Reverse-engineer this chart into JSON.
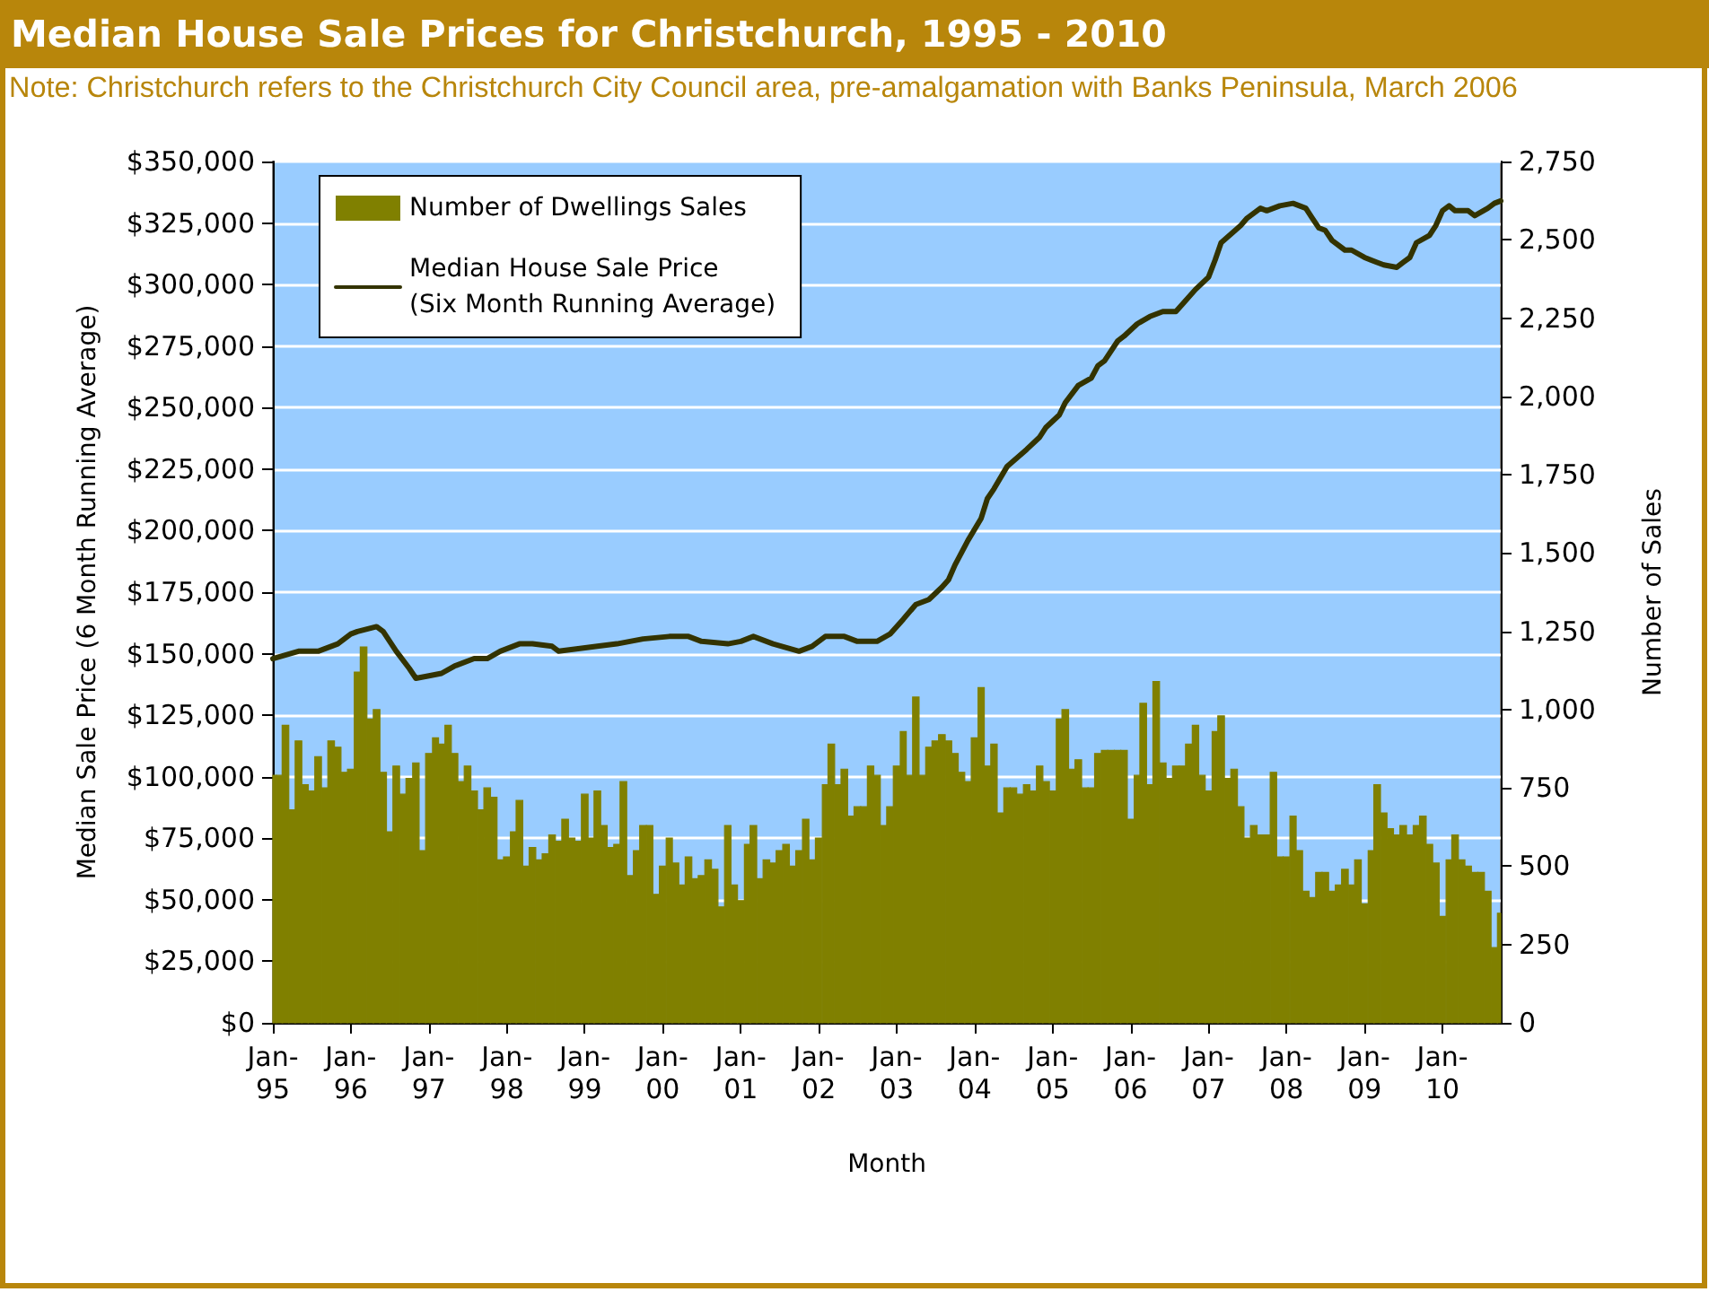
{
  "chart_data": {
    "type": "bar",
    "title": "Median House Sale Prices for Christchurch, 1995 - 2010",
    "annotations": [
      "Note: Christchurch refers to the Christchurch City Council area, pre-amalgamation with Banks Peninsula, March 2006"
    ],
    "xlabel": "Month",
    "ylabel": "Median Sale Price (6 Month Running Average)",
    "y2label": "Number of Sales",
    "x": [
      "1995-01",
      "1995-02",
      "1995-03",
      "1995-04",
      "1995-05",
      "1995-06",
      "1995-07",
      "1995-08",
      "1995-09",
      "1995-10",
      "1995-11",
      "1995-12",
      "1996-01",
      "1996-02",
      "1996-03",
      "1996-04",
      "1996-05",
      "1996-06",
      "1996-07",
      "1996-08",
      "1996-09",
      "1996-10",
      "1996-11",
      "1996-12",
      "1997-01",
      "1997-02",
      "1997-03",
      "1997-04",
      "1997-05",
      "1997-06",
      "1997-07",
      "1997-08",
      "1997-09",
      "1997-10",
      "1997-11",
      "1997-12",
      "1998-01",
      "1998-02",
      "1998-03",
      "1998-04",
      "1998-05",
      "1998-06",
      "1998-07",
      "1998-08",
      "1998-09",
      "1998-10",
      "1998-11",
      "1998-12",
      "1999-01",
      "1999-02",
      "1999-03",
      "1999-04",
      "1999-05",
      "1999-06",
      "1999-07",
      "1999-08",
      "1999-09",
      "1999-10",
      "1999-11",
      "1999-12",
      "2000-01",
      "2000-02",
      "2000-03",
      "2000-04",
      "2000-05",
      "2000-06",
      "2000-07",
      "2000-08",
      "2000-09",
      "2000-10",
      "2000-11",
      "2000-12",
      "2001-01",
      "2001-02",
      "2001-03",
      "2001-04",
      "2001-05",
      "2001-06",
      "2001-07",
      "2001-08",
      "2001-09",
      "2001-10",
      "2001-11",
      "2001-12",
      "2002-01",
      "2002-02",
      "2002-03",
      "2002-04",
      "2002-05",
      "2002-06",
      "2002-07",
      "2002-08",
      "2002-09",
      "2002-10",
      "2002-11",
      "2002-12",
      "2003-01",
      "2003-02",
      "2003-03",
      "2003-04",
      "2003-05",
      "2003-06",
      "2003-07",
      "2003-08",
      "2003-09",
      "2003-10",
      "2003-11",
      "2003-12",
      "2004-01",
      "2004-02",
      "2004-03",
      "2004-04",
      "2004-05",
      "2004-06",
      "2004-07",
      "2004-08",
      "2004-09",
      "2004-10",
      "2004-11",
      "2004-12",
      "2005-01",
      "2005-02",
      "2005-03",
      "2005-04",
      "2005-05",
      "2005-06",
      "2005-07",
      "2005-08",
      "2005-09",
      "2005-10",
      "2005-11",
      "2005-12",
      "2006-01",
      "2006-02",
      "2006-03",
      "2006-04",
      "2006-05",
      "2006-06",
      "2006-07",
      "2006-08",
      "2006-09",
      "2006-10",
      "2006-11",
      "2006-12",
      "2007-01",
      "2007-02",
      "2007-03",
      "2007-04",
      "2007-05",
      "2007-06",
      "2007-07",
      "2007-08",
      "2007-09",
      "2007-10",
      "2007-11",
      "2007-12",
      "2008-01",
      "2008-02",
      "2008-03",
      "2008-04",
      "2008-05",
      "2008-06",
      "2008-07",
      "2008-08",
      "2008-09",
      "2008-10",
      "2008-11",
      "2008-12",
      "2009-01",
      "2009-02",
      "2009-03",
      "2009-04",
      "2009-05",
      "2009-06",
      "2009-07",
      "2009-08",
      "2009-09",
      "2009-10",
      "2009-11",
      "2009-12",
      "2010-01",
      "2010-02",
      "2010-03",
      "2010-04",
      "2010-05",
      "2010-06",
      "2010-07",
      "2010-08",
      "2010-09",
      "2010-10"
    ],
    "xlim": [
      "1995-01",
      "2010-10"
    ],
    "xticks": [
      {
        "value": "1995-01",
        "label": "Jan-\n95"
      },
      {
        "value": "1996-01",
        "label": "Jan-\n96"
      },
      {
        "value": "1997-01",
        "label": "Jan-\n97"
      },
      {
        "value": "1998-01",
        "label": "Jan-\n98"
      },
      {
        "value": "1999-01",
        "label": "Jan-\n99"
      },
      {
        "value": "2000-01",
        "label": "Jan-\n00"
      },
      {
        "value": "2001-01",
        "label": "Jan-\n01"
      },
      {
        "value": "2002-01",
        "label": "Jan-\n02"
      },
      {
        "value": "2003-01",
        "label": "Jan-\n03"
      },
      {
        "value": "2004-01",
        "label": "Jan-\n04"
      },
      {
        "value": "2005-01",
        "label": "Jan-\n05"
      },
      {
        "value": "2006-01",
        "label": "Jan-\n06"
      },
      {
        "value": "2007-01",
        "label": "Jan-\n07"
      },
      {
        "value": "2008-01",
        "label": "Jan-\n08"
      },
      {
        "value": "2009-01",
        "label": "Jan-\n09"
      },
      {
        "value": "2010-01",
        "label": "Jan-\n10"
      }
    ],
    "ylim": [
      0,
      350000
    ],
    "yticks": [
      {
        "value": 0,
        "label": "$0"
      },
      {
        "value": 25000,
        "label": "$25,000"
      },
      {
        "value": 50000,
        "label": "$50,000"
      },
      {
        "value": 75000,
        "label": "$75,000"
      },
      {
        "value": 100000,
        "label": "$100,000"
      },
      {
        "value": 125000,
        "label": "$125,000"
      },
      {
        "value": 150000,
        "label": "$150,000"
      },
      {
        "value": 175000,
        "label": "$175,000"
      },
      {
        "value": 200000,
        "label": "$200,000"
      },
      {
        "value": 225000,
        "label": "$225,000"
      },
      {
        "value": 250000,
        "label": "$250,000"
      },
      {
        "value": 275000,
        "label": "$275,000"
      },
      {
        "value": 300000,
        "label": "$300,000"
      },
      {
        "value": 325000,
        "label": "$325,000"
      },
      {
        "value": 350000,
        "label": "$350,000"
      }
    ],
    "y2lim": [
      0,
      2750
    ],
    "y2ticks": [
      0,
      250,
      500,
      750,
      {
        "value": 1000,
        "label": "1,000"
      },
      {
        "value": 1250,
        "label": "1,250"
      },
      {
        "value": 1500,
        "label": "1,500"
      },
      {
        "value": 1750,
        "label": "1,750"
      },
      {
        "value": 2000,
        "label": "2,000"
      },
      {
        "value": 2250,
        "label": "2,250"
      },
      {
        "value": 2500,
        "label": "2,500"
      },
      {
        "value": 2750,
        "label": "2,750"
      }
    ],
    "series": [
      {
        "name": "Number of Dwellings Sales",
        "axis": "y2",
        "color": "#808000",
        "values": [
          790,
          790,
          950,
          680,
          900,
          760,
          740,
          850,
          750,
          900,
          880,
          800,
          810,
          1120,
          1200,
          970,
          1000,
          800,
          610,
          820,
          730,
          780,
          830,
          550,
          860,
          910,
          890,
          950,
          860,
          770,
          820,
          740,
          680,
          750,
          720,
          520,
          530,
          610,
          710,
          500,
          560,
          520,
          540,
          600,
          580,
          650,
          590,
          580,
          730,
          590,
          740,
          630,
          560,
          570,
          770,
          470,
          550,
          630,
          630,
          410,
          500,
          590,
          510,
          440,
          530,
          460,
          470,
          520,
          490,
          370,
          630,
          440,
          390,
          570,
          630,
          460,
          520,
          510,
          550,
          570,
          500,
          550,
          650,
          520,
          590,
          760,
          890,
          760,
          810,
          660,
          690,
          690,
          820,
          790,
          630,
          690,
          820,
          930,
          790,
          1040,
          790,
          880,
          900,
          920,
          900,
          860,
          800,
          770,
          910,
          1070,
          820,
          890,
          670,
          750,
          750,
          730,
          760,
          740,
          820,
          770,
          740,
          970,
          1000,
          810,
          840,
          750,
          750,
          860,
          870,
          870,
          870,
          870,
          650,
          790,
          1020,
          760,
          1090,
          830,
          780,
          820,
          820,
          890,
          950,
          790,
          740,
          930,
          980,
          780,
          810,
          690,
          590,
          630,
          600,
          600,
          800,
          530,
          530,
          660,
          550,
          420,
          400,
          480,
          480,
          420,
          440,
          490,
          440,
          520,
          380,
          550,
          760,
          670,
          620,
          600,
          630,
          600,
          630,
          660,
          570,
          510,
          340,
          520,
          600,
          520,
          500,
          480,
          480,
          420,
          240,
          350
        ]
      },
      {
        "name": "Median House Sale Price\n(Six Month Running Average)",
        "type": "line",
        "color": "#333300",
        "x": [
          "1995-01",
          "1995-05",
          "1995-08",
          "1995-11",
          "1996-01",
          "1996-02",
          "1996-05",
          "1996-06",
          "1996-08",
          "1996-10",
          "1996-11",
          "1997-01",
          "1997-03",
          "1997-05",
          "1997-08",
          "1997-10",
          "1997-12",
          "1998-03",
          "1998-05",
          "1998-08",
          "1998-09",
          "1998-12",
          "1999-03",
          "1999-06",
          "1999-10",
          "2000-02",
          "2000-05",
          "2000-07",
          "2000-11",
          "2001-01",
          "2001-03",
          "2001-06",
          "2001-10",
          "2001-12",
          "2002-02",
          "2002-05",
          "2002-07",
          "2002-10",
          "2002-12",
          "2003-02",
          "2003-04",
          "2003-06",
          "2003-08",
          "2003-09",
          "2003-10",
          "2003-12",
          "2004-02",
          "2004-03",
          "2004-04",
          "2004-06",
          "2004-09",
          "2004-11",
          "2004-12",
          "2005-02",
          "2005-03",
          "2005-05",
          "2005-07",
          "2005-08",
          "2005-09",
          "2005-11",
          "2005-12",
          "2006-02",
          "2006-04",
          "2006-06",
          "2006-08",
          "2006-09",
          "2006-11",
          "2007-01",
          "2007-02",
          "2007-03",
          "2007-06",
          "2007-07",
          "2007-09",
          "2007-10",
          "2007-12",
          "2008-02",
          "2008-04",
          "2008-05",
          "2008-06",
          "2008-07",
          "2008-08",
          "2008-10",
          "2008-11",
          "2009-01",
          "2009-03",
          "2009-04",
          "2009-06",
          "2009-07",
          "2009-08",
          "2009-09",
          "2009-11",
          "2009-12",
          "2010-01",
          "2010-02",
          "2010-03",
          "2010-05",
          "2010-06",
          "2010-08",
          "2010-09",
          "2010-10"
        ],
        "values": [
          148000,
          151000,
          151000,
          154000,
          158000,
          159000,
          161000,
          159000,
          151000,
          144000,
          140000,
          141000,
          142000,
          145000,
          148000,
          148000,
          151000,
          154000,
          154000,
          153000,
          151000,
          152000,
          153000,
          154000,
          156000,
          157000,
          157000,
          155000,
          154000,
          155000,
          157000,
          154000,
          151000,
          153000,
          157000,
          157000,
          155000,
          155000,
          158000,
          164000,
          170000,
          172000,
          177000,
          180000,
          186000,
          196000,
          205000,
          213000,
          217000,
          226000,
          233000,
          238000,
          242000,
          247000,
          252000,
          259000,
          262000,
          267000,
          269000,
          277000,
          279000,
          284000,
          287000,
          289000,
          289000,
          292000,
          298000,
          303000,
          310000,
          317000,
          324000,
          327000,
          331000,
          330000,
          332000,
          333000,
          331000,
          327000,
          323000,
          322000,
          318000,
          314000,
          314000,
          311000,
          309000,
          308000,
          307000,
          309000,
          311000,
          317000,
          320000,
          324000,
          330000,
          332000,
          330000,
          330000,
          328000,
          331000,
          333000,
          334000
        ]
      }
    ],
    "grid": "y",
    "legend": "top left",
    "marker": "none",
    "line_style": "solid"
  }
}
